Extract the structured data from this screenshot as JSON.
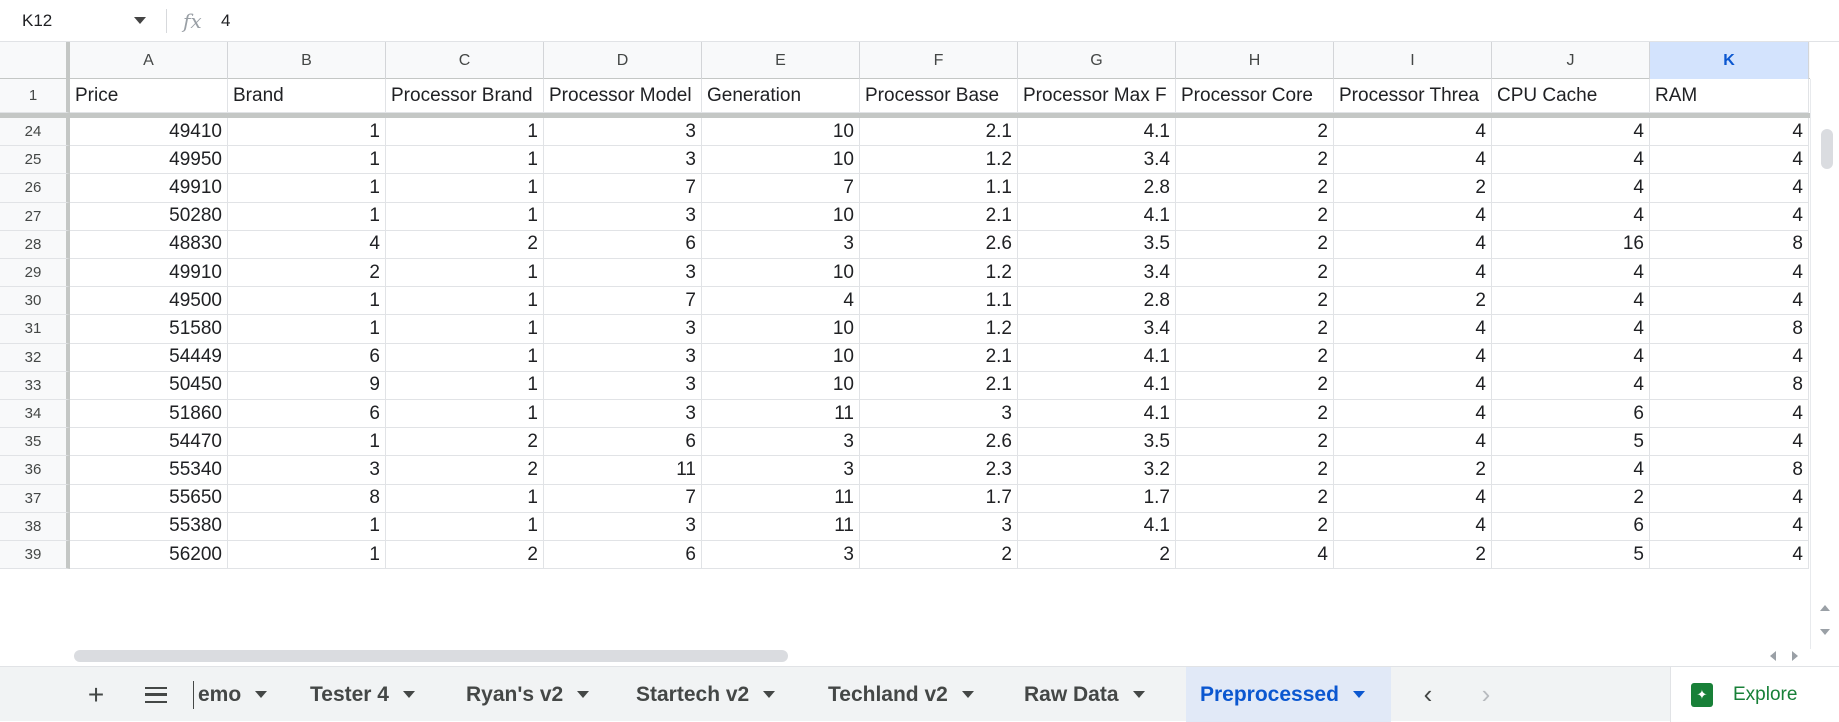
{
  "formula_bar": {
    "name_box": "K12",
    "fx_label": "fx",
    "value": "4"
  },
  "columns": [
    "A",
    "B",
    "C",
    "D",
    "E",
    "F",
    "G",
    "H",
    "I",
    "J",
    "K"
  ],
  "selected_column": "K",
  "header_row": {
    "row_number": "1",
    "cells": [
      "Price",
      "Brand",
      "Processor Brand",
      "Processor Model",
      "Generation",
      "Processor Base",
      "Processor Max F",
      "Processor Core",
      "Processor Threa",
      "CPU Cache",
      "RAM"
    ]
  },
  "rows": [
    {
      "n": "24",
      "cells": [
        "49410",
        "1",
        "1",
        "3",
        "10",
        "2.1",
        "4.1",
        "2",
        "4",
        "4",
        "4"
      ]
    },
    {
      "n": "25",
      "cells": [
        "49950",
        "1",
        "1",
        "3",
        "10",
        "1.2",
        "3.4",
        "2",
        "4",
        "4",
        "4"
      ]
    },
    {
      "n": "26",
      "cells": [
        "49910",
        "1",
        "1",
        "7",
        "7",
        "1.1",
        "2.8",
        "2",
        "2",
        "4",
        "4"
      ]
    },
    {
      "n": "27",
      "cells": [
        "50280",
        "1",
        "1",
        "3",
        "10",
        "2.1",
        "4.1",
        "2",
        "4",
        "4",
        "4"
      ]
    },
    {
      "n": "28",
      "cells": [
        "48830",
        "4",
        "2",
        "6",
        "3",
        "2.6",
        "3.5",
        "2",
        "4",
        "16",
        "8"
      ]
    },
    {
      "n": "29",
      "cells": [
        "49910",
        "2",
        "1",
        "3",
        "10",
        "1.2",
        "3.4",
        "2",
        "4",
        "4",
        "4"
      ]
    },
    {
      "n": "30",
      "cells": [
        "49500",
        "1",
        "1",
        "7",
        "4",
        "1.1",
        "2.8",
        "2",
        "2",
        "4",
        "4"
      ]
    },
    {
      "n": "31",
      "cells": [
        "51580",
        "1",
        "1",
        "3",
        "10",
        "1.2",
        "3.4",
        "2",
        "4",
        "4",
        "8"
      ]
    },
    {
      "n": "32",
      "cells": [
        "54449",
        "6",
        "1",
        "3",
        "10",
        "2.1",
        "4.1",
        "2",
        "4",
        "4",
        "4"
      ]
    },
    {
      "n": "33",
      "cells": [
        "50450",
        "9",
        "1",
        "3",
        "10",
        "2.1",
        "4.1",
        "2",
        "4",
        "4",
        "8"
      ]
    },
    {
      "n": "34",
      "cells": [
        "51860",
        "6",
        "1",
        "3",
        "11",
        "3",
        "4.1",
        "2",
        "4",
        "6",
        "4"
      ]
    },
    {
      "n": "35",
      "cells": [
        "54470",
        "1",
        "2",
        "6",
        "3",
        "2.6",
        "3.5",
        "2",
        "4",
        "5",
        "4"
      ]
    },
    {
      "n": "36",
      "cells": [
        "55340",
        "3",
        "2",
        "11",
        "3",
        "2.3",
        "3.2",
        "2",
        "2",
        "4",
        "8"
      ]
    },
    {
      "n": "37",
      "cells": [
        "55650",
        "8",
        "1",
        "7",
        "11",
        "1.7",
        "1.7",
        "2",
        "4",
        "2",
        "4"
      ]
    },
    {
      "n": "38",
      "cells": [
        "55380",
        "1",
        "1",
        "3",
        "11",
        "3",
        "4.1",
        "2",
        "4",
        "6",
        "4"
      ]
    },
    {
      "n": "39",
      "cells": [
        "56200",
        "1",
        "2",
        "6",
        "3",
        "2",
        "2",
        "4",
        "2",
        "5",
        "4"
      ]
    }
  ],
  "tabs": {
    "add_label": "+",
    "items": [
      {
        "label": "Demo",
        "visible_label": "emo",
        "active": false
      },
      {
        "label": "Tester 4",
        "active": false
      },
      {
        "label": "Ryan's v2",
        "active": false
      },
      {
        "label": "Startech v2",
        "active": false
      },
      {
        "label": "Techland v2",
        "active": false
      },
      {
        "label": "Raw Data",
        "active": false
      },
      {
        "label": "Preprocessed",
        "active": true
      }
    ],
    "prev_arrow": "‹",
    "next_arrow": "›",
    "explore_label": "Explore"
  },
  "colors": {
    "selected_header_bg": "#d3e3fd",
    "selected_header_text": "#0b57d0",
    "active_tab_bg": "#e1e9f7",
    "explore_green": "#188038"
  }
}
